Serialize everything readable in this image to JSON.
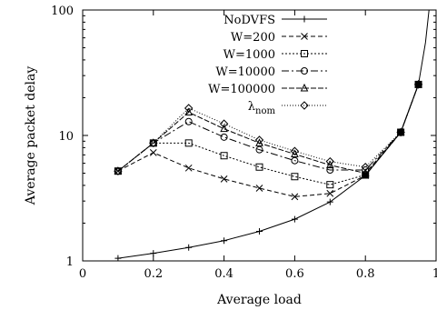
{
  "chart_data": {
    "type": "line",
    "xlabel": "Average load",
    "ylabel": "Average packet delay",
    "xlim": [
      0,
      1
    ],
    "ylim": [
      1,
      100
    ],
    "y_scale": "log",
    "grid": false,
    "legend_placement": "top-right",
    "x_ticks": [
      0,
      0.2,
      0.4,
      0.6,
      0.8,
      1
    ],
    "x_tick_labels": [
      "0",
      "0.2",
      "0.4",
      "0.6",
      "0.8",
      "1"
    ],
    "y_ticks": [
      1,
      10,
      100
    ],
    "y_tick_labels": [
      "1",
      "10",
      "100"
    ],
    "series": [
      {
        "name": "NoDVFS",
        "marker": "plus",
        "dash": "",
        "x": [
          0.1,
          0.2,
          0.3,
          0.4,
          0.5,
          0.6,
          0.7,
          0.8,
          0.9,
          0.95,
          0.97,
          0.98
        ],
        "y": [
          1.05,
          1.15,
          1.28,
          1.45,
          1.72,
          2.15,
          2.95,
          4.8,
          10.6,
          25.5,
          55,
          100
        ]
      },
      {
        "name": "W=200",
        "marker": "x",
        "dash": "5,3",
        "x": [
          0.1,
          0.2,
          0.3,
          0.4,
          0.5,
          0.6,
          0.7,
          0.8,
          0.9,
          0.95
        ],
        "y": [
          5.2,
          7.3,
          5.5,
          4.5,
          3.8,
          3.25,
          3.45,
          4.8,
          10.6,
          25.5
        ]
      },
      {
        "name": "W=1000",
        "marker": "square",
        "dash": "2,2",
        "x": [
          0.1,
          0.2,
          0.3,
          0.4,
          0.5,
          0.6,
          0.7,
          0.8,
          0.9,
          0.95
        ],
        "y": [
          5.2,
          8.7,
          8.7,
          6.9,
          5.6,
          4.7,
          4.05,
          4.85,
          10.6,
          25.5
        ]
      },
      {
        "name": "W=10000",
        "marker": "circle",
        "dash": "8,3,2,3",
        "x": [
          0.1,
          0.2,
          0.3,
          0.4,
          0.5,
          0.6,
          0.7,
          0.8,
          0.9,
          0.95
        ],
        "y": [
          5.2,
          8.7,
          12.9,
          9.7,
          7.7,
          6.3,
          5.3,
          5.3,
          10.6,
          25.5
        ]
      },
      {
        "name": "W=100000",
        "marker": "triangle",
        "dash": "6,2",
        "x": [
          0.1,
          0.2,
          0.3,
          0.4,
          0.5,
          0.6,
          0.7,
          0.8,
          0.9,
          0.95
        ],
        "y": [
          5.2,
          8.7,
          15.3,
          11.3,
          8.7,
          7.1,
          5.8,
          5.0,
          10.6,
          25.5
        ]
      },
      {
        "name": "λnom",
        "name_main": "λ",
        "name_sub": "nom",
        "marker": "diamond",
        "dash": "1,2",
        "x": [
          0.1,
          0.2,
          0.3,
          0.4,
          0.5,
          0.6,
          0.7,
          0.8,
          0.9,
          0.95
        ],
        "y": [
          5.2,
          8.7,
          16.5,
          12.4,
          9.2,
          7.5,
          6.2,
          5.6,
          10.6,
          25.5
        ]
      }
    ]
  }
}
